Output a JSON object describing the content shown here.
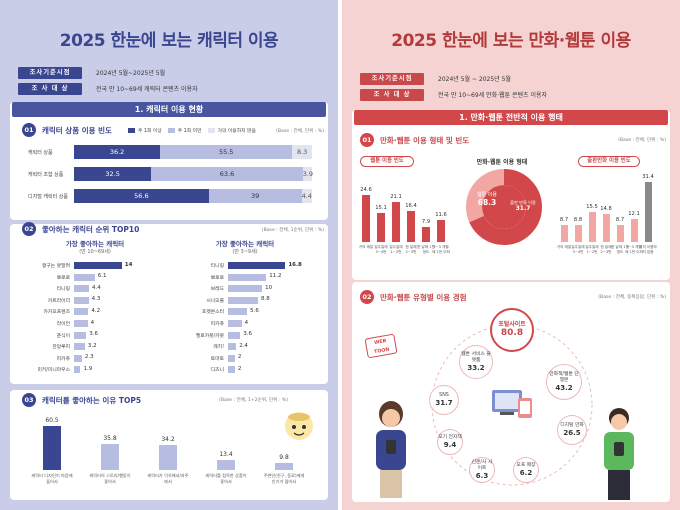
{
  "left": {
    "title": "2025 한눈에 보는 캐릭터 이용",
    "meta": [
      {
        "tag": "조사기준시점",
        "text": "2024년 5월~2025년 5월"
      },
      {
        "tag": "조 사 대 상",
        "text": "전국 만 10~69세 캐릭터 콘텐츠 이용자"
      }
    ],
    "section_title": "1. 캐릭터 이용 현황",
    "usage": {
      "num": "01",
      "title": "캐릭터 상품 이용 빈도",
      "base": "(Base : 전체, 단위 : %)",
      "legend": [
        {
          "label": "주 1회 이상",
          "color": "#3b4690"
        },
        {
          "label": "주 1회 미만",
          "color": "#b7bde0"
        },
        {
          "label": "거의 이용하지 않음",
          "color": "#e2e4f0"
        }
      ],
      "rows": [
        {
          "label": "캐릭터 상품",
          "values": [
            36.2,
            55.5,
            8.3
          ]
        },
        {
          "label": "캐릭터 조합 상품",
          "values": [
            32.5,
            63.6,
            3.9
          ]
        },
        {
          "label": "디지털 캐릭터 상품",
          "values": [
            56.6,
            39.0,
            4.4
          ]
        }
      ]
    },
    "top10": {
      "num": "02",
      "title": "좋아하는 캐릭터 순위 TOP10",
      "base": "(Base : 전체, 1순위, 단위 : %)",
      "groups": [
        {
          "title": "가장 좋아하는 캐릭터",
          "sub": "(만 10~69세)",
          "items": [
            {
              "name": "짱구는 못말려",
              "value": 14.0
            },
            {
              "name": "뽀로로",
              "value": 6.1
            },
            {
              "name": "티니핑",
              "value": 4.4
            },
            {
              "name": "카트라이더",
              "value": 4.3
            },
            {
              "name": "카카오프렌즈",
              "value": 4.2
            },
            {
              "name": "라이언",
              "value": 4.0
            },
            {
              "name": "춘식이",
              "value": 3.6
            },
            {
              "name": "잔망루피",
              "value": 3.2
            },
            {
              "name": "피카츄",
              "value": 2.3
            },
            {
              "name": "미키/미니마우스",
              "value": 1.9
            }
          ]
        },
        {
          "title": "가장 좋아하는 캐릭터",
          "sub": "(만 3~9세)",
          "items": [
            {
              "name": "티니핑",
              "value": 16.8
            },
            {
              "name": "뽀로로",
              "value": 11.2
            },
            {
              "name": "브레드",
              "value": 10.0
            },
            {
              "name": "시나모롤",
              "value": 8.8
            },
            {
              "name": "포켓몬스터",
              "value": 5.6
            },
            {
              "name": "피카츄",
              "value": 4.0
            },
            {
              "name": "헬로카봇/카봇",
              "value": 3.6
            },
            {
              "name": "캐치!",
              "value": 2.4
            },
            {
              "name": "토마토",
              "value": 2.0
            },
            {
              "name": "디즈니",
              "value": 2.0
            }
          ]
        }
      ]
    },
    "reasons": {
      "num": "03",
      "title": "캐릭터를 좋아하는 이유 TOP5",
      "base": "(Base : 전체, 1+2순위, 단위 : %)",
      "items": [
        {
          "label": "캐릭터 디자인이 마음에 들어서",
          "value": 60.5
        },
        {
          "label": "캐릭터의 스토리/행동이 좋아서",
          "value": 35.8
        },
        {
          "label": "캐릭터가 익숙해서/자주 봐서",
          "value": 34.2
        },
        {
          "label": "캐릭터를 접목한 상품이 좋아서",
          "value": 13.4
        },
        {
          "label": "주변인(친구, 동료)에게 인기가 많아서",
          "value": 9.8
        }
      ]
    }
  },
  "right": {
    "title": "2025 한눈에 보는 만화·웹툰 이용",
    "meta": [
      {
        "tag": "조사기준시점",
        "text": "2024년 5월 ~ 2025년 5월"
      },
      {
        "tag": "조 사 대 상",
        "text": "전국 만 10~69세 만화·웹툰 콘텐츠 이용자"
      }
    ],
    "section_title": "1. 만화·웹툰 전반적 이용 행태",
    "behavior": {
      "num": "01",
      "title": "만화·웹툰 이용 형태 및 빈도",
      "base": "(Base : 전체, 단위 : %)",
      "left_pill": "웹툰 이용 빈도",
      "center_title": "만화·웹툰 이용 형태",
      "right_pill": "출판만화 이용 빈도",
      "webtoon_freq": [
        {
          "label": "거의 매일",
          "value": 24.6
        },
        {
          "label": "일주일에 3~4번",
          "value": 15.1
        },
        {
          "label": "일주일에 1~2번",
          "value": 21.1
        },
        {
          "label": "한 달에 2~3번",
          "value": 16.4
        },
        {
          "label": "한 달에 1번 정도",
          "value": 7.9
        },
        {
          "label": "2~3 개월에 1번 이하",
          "value": 11.6
        }
      ],
      "donut": [
        {
          "label": "웹툰 이용",
          "value": 68.3,
          "color": "#d2484a"
        },
        {
          "label": "출판 만화 이용",
          "value": 31.7,
          "color": "#f2a7a3"
        }
      ],
      "print_freq": [
        {
          "label": "거의 매일",
          "value": 8.7
        },
        {
          "label": "일주일에 3~4번",
          "value": 8.8
        },
        {
          "label": "일주일에 1~2번",
          "value": 15.5
        },
        {
          "label": "한 달에 2~3번",
          "value": 14.8
        },
        {
          "label": "한 달에 1번 정도",
          "value": 8.7
        },
        {
          "label": "2~3 개월에 1번 이하",
          "value": 12.1
        },
        {
          "label": "거의 이용하지 않음",
          "value": 31.4
        }
      ]
    },
    "experience": {
      "num": "02",
      "title": "만화·웹툰 유형별 이용 경험",
      "base": "(Base : 전체, 중복응답, 단위 : %)",
      "sign": "WEB TOON",
      "bubbles": [
        {
          "label": "포털사이트",
          "value": 80.8,
          "big": true
        },
        {
          "label": "웹툰 서비스 플랫폼",
          "value": 33.2
        },
        {
          "label": "만화책/웹툰 단행본",
          "value": 43.2
        },
        {
          "label": "SNS",
          "value": 31.7
        },
        {
          "label": "디지털 만화",
          "value": 26.5
        },
        {
          "label": "포기 전자책",
          "value": 9.4
        },
        {
          "label": "신문/사 사이트",
          "value": 6.3
        },
        {
          "label": "오프 매장",
          "value": 6.2
        }
      ]
    }
  }
}
